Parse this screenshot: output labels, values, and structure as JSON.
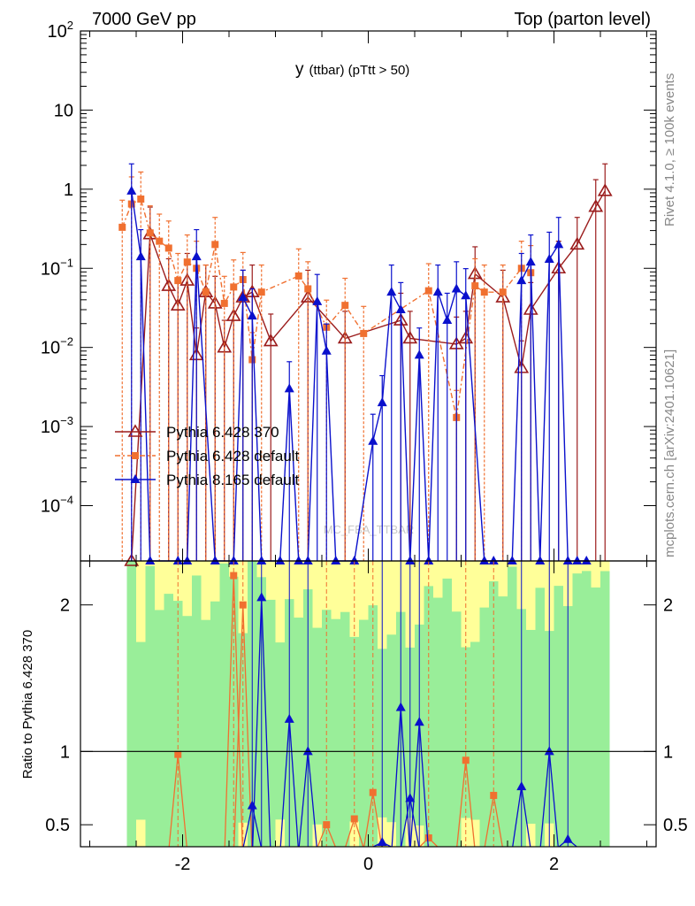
{
  "header": {
    "left": "7000 GeV pp",
    "right": "Top (parton level)"
  },
  "side_labels": {
    "rivet": "Rivet 4.1.0, ≥ 100k events",
    "mcplots": "mcplots.cern.ch [arXiv:2401.10621]"
  },
  "watermark": "MC_FBA_TTBAR",
  "chart_data": {
    "type": "line",
    "title": "y",
    "title_suffix": "(ttbar) (pTtt > 50)",
    "xlabel": "",
    "ylabel_main": "",
    "ylabel_ratio": "Ratio to Pythia 6.428 370",
    "xlim": [
      -3.1,
      3.1
    ],
    "ylim_main": [
      2e-05,
      100
    ],
    "ylim_ratio": [
      0.35,
      2.3
    ],
    "x_ticks": [
      "-2",
      "0",
      "2"
    ],
    "x_tick_values": [
      -2,
      0,
      2
    ],
    "y_ticks_main": [
      {
        "base": "10",
        "exp": "2",
        "value": 100
      },
      {
        "base": "10",
        "exp": "",
        "value": 10
      },
      {
        "base": "1",
        "exp": "",
        "value": 1
      },
      {
        "base": "10",
        "exp": "−1",
        "value": 0.1
      },
      {
        "base": "10",
        "exp": "−2",
        "value": 0.01
      },
      {
        "base": "10",
        "exp": "−3",
        "value": 0.001
      },
      {
        "base": "10",
        "exp": "−4",
        "value": 0.0001
      }
    ],
    "y_ticks_ratio": [
      {
        "label": "2",
        "value": 2
      },
      {
        "label": "1",
        "value": 1
      },
      {
        "label": "0.5",
        "value": 0.5
      }
    ],
    "bins": {
      "start": -2.6,
      "width": 0.1,
      "count": 52
    },
    "series": [
      {
        "name": "Pythia 6.428 370",
        "color": "#9b1c1c",
        "marker": "open-triangle",
        "dash": "",
        "points": [
          [
            -2.55,
            1e-05
          ],
          [
            -2.35,
            0.27
          ],
          [
            -2.15,
            0.06
          ],
          [
            -2.05,
            0.034
          ],
          [
            -1.95,
            0.07
          ],
          [
            -1.85,
            0.008
          ],
          [
            -1.75,
            0.05
          ],
          [
            -1.65,
            0.036
          ],
          [
            -1.55,
            0.01
          ],
          [
            -1.45,
            0.025
          ],
          [
            -1.35,
            0.043
          ],
          [
            -1.25,
            0.05
          ],
          [
            -1.05,
            0.012
          ],
          [
            -0.65,
            0.043
          ],
          [
            -0.25,
            0.013
          ],
          [
            0.35,
            0.022
          ],
          [
            0.45,
            0.013
          ],
          [
            0.95,
            0.011
          ],
          [
            1.05,
            0.013
          ],
          [
            1.15,
            0.085
          ],
          [
            1.45,
            0.043
          ],
          [
            1.65,
            0.0055
          ],
          [
            1.75,
            0.03
          ],
          [
            2.05,
            0.1
          ],
          [
            2.25,
            0.2
          ],
          [
            2.45,
            0.6
          ],
          [
            2.55,
            0.95
          ]
        ]
      },
      {
        "name": "Pythia 6.428 default",
        "color": "#f07030",
        "marker": "square",
        "dash": "6,3,2,3",
        "points": [
          [
            -2.65,
            0.33
          ],
          [
            -2.55,
            0.65
          ],
          [
            -2.45,
            0.75
          ],
          [
            -2.35,
            0.28
          ],
          [
            -2.25,
            0.22
          ],
          [
            -2.15,
            0.18
          ],
          [
            -2.05,
            0.07
          ],
          [
            -1.95,
            0.12
          ],
          [
            -1.85,
            0.1
          ],
          [
            -1.75,
            0.05
          ],
          [
            -1.65,
            0.2
          ],
          [
            -1.55,
            0.036
          ],
          [
            -1.45,
            0.058
          ],
          [
            -1.35,
            0.072
          ],
          [
            -1.25,
            0.007
          ],
          [
            -1.15,
            0.05
          ],
          [
            -0.75,
            0.08
          ],
          [
            -0.65,
            0.055
          ],
          [
            -0.45,
            0.018
          ],
          [
            -0.25,
            0.034
          ],
          [
            -0.05,
            0.015
          ],
          [
            0.65,
            0.052
          ],
          [
            0.95,
            0.0013
          ],
          [
            1.15,
            0.06
          ],
          [
            1.25,
            0.05
          ],
          [
            1.45,
            0.05
          ],
          [
            1.65,
            0.1
          ],
          [
            1.75,
            0.088
          ]
        ]
      },
      {
        "name": "Pythia 8.165 default",
        "color": "#0a10cc",
        "marker": "triangle",
        "dash": "",
        "points": [
          [
            -2.55,
            0.95
          ],
          [
            -2.45,
            0.14
          ],
          [
            -2.35,
            1e-05
          ],
          [
            -2.05,
            1e-05
          ],
          [
            -1.95,
            1e-05
          ],
          [
            -1.85,
            0.14
          ],
          [
            -1.65,
            1e-05
          ],
          [
            -1.45,
            1e-05
          ],
          [
            -1.35,
            0.043
          ],
          [
            -1.25,
            0.025
          ],
          [
            -1.15,
            1e-05
          ],
          [
            -0.95,
            1e-05
          ],
          [
            -0.85,
            0.003
          ],
          [
            -0.75,
            1e-05
          ],
          [
            -0.65,
            1e-05
          ],
          [
            -0.55,
            0.038
          ],
          [
            -0.45,
            0.009
          ],
          [
            -0.35,
            1e-05
          ],
          [
            -0.15,
            1e-05
          ],
          [
            0.05,
            0.00065
          ],
          [
            0.15,
            0.002
          ],
          [
            0.25,
            0.05
          ],
          [
            0.35,
            0.03
          ],
          [
            0.45,
            1e-05
          ],
          [
            0.55,
            0.008
          ],
          [
            0.65,
            1e-05
          ],
          [
            0.75,
            0.05
          ],
          [
            0.85,
            0.022
          ],
          [
            0.95,
            0.055
          ],
          [
            1.05,
            0.045
          ],
          [
            1.25,
            1e-05
          ],
          [
            1.35,
            1e-05
          ],
          [
            1.55,
            1e-05
          ],
          [
            1.65,
            0.07
          ],
          [
            1.75,
            0.12
          ],
          [
            1.85,
            1e-05
          ],
          [
            1.95,
            0.13
          ],
          [
            2.05,
            0.2
          ],
          [
            2.15,
            1e-05
          ],
          [
            2.25,
            1e-05
          ],
          [
            2.35,
            1e-05
          ]
        ]
      }
    ],
    "ratio_series": [
      {
        "name": "Pythia 6.428 default",
        "color": "#f07030",
        "points": [
          [
            -1.45,
            2.2
          ],
          [
            -1.35,
            2.0
          ],
          [
            -2.05,
            0.98
          ],
          [
            -0.45,
            0.5
          ],
          [
            -0.15,
            0.54
          ],
          [
            0.05,
            0.72
          ],
          [
            0.65,
            0.41
          ],
          [
            1.05,
            0.94
          ],
          [
            1.35,
            0.7
          ]
        ]
      },
      {
        "name": "Pythia 8.165 default",
        "color": "#0a10cc",
        "points": [
          [
            -1.15,
            2.05
          ],
          [
            -1.25,
            0.63
          ],
          [
            -0.65,
            1.0
          ],
          [
            -0.85,
            1.22
          ],
          [
            0.35,
            1.3
          ],
          [
            0.45,
            0.68
          ],
          [
            0.15,
            0.38
          ],
          [
            0.55,
            1.2
          ],
          [
            1.95,
            1.0
          ],
          [
            1.65,
            0.76
          ],
          [
            2.15,
            0.4
          ]
        ]
      }
    ],
    "legend_position": "middle-left"
  }
}
